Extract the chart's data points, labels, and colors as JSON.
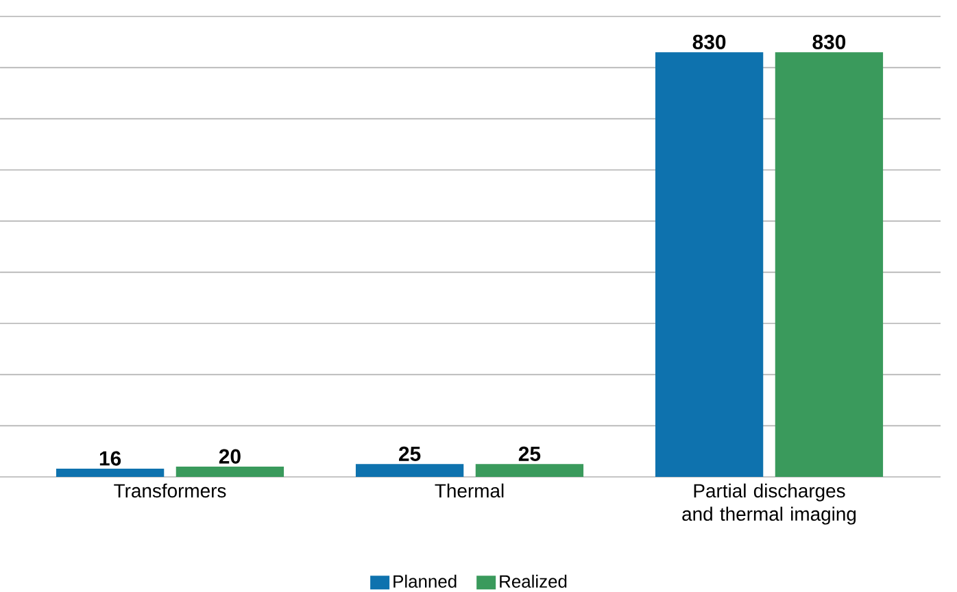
{
  "chart_data": {
    "type": "bar",
    "categories": [
      "Transformers",
      "Thermal",
      "Partial discharges and thermal imaging"
    ],
    "series": [
      {
        "name": "Planned",
        "color": "#0e72ae",
        "values": [
          16,
          25,
          830
        ]
      },
      {
        "name": "Realized",
        "color": "#3a9a5c",
        "values": [
          20,
          25,
          830
        ]
      }
    ],
    "ylim": [
      0,
      900
    ],
    "yticks": [
      {
        "value": 0,
        "label": null
      },
      {
        "value": 100,
        "label": null
      },
      {
        "value": 200,
        "label": null
      },
      {
        "value": 300,
        "label": null
      },
      {
        "value": 400,
        "label": null
      },
      {
        "value": 500,
        "label": null
      },
      {
        "value": 600,
        "label": null
      },
      {
        "value": 700,
        "label": null
      },
      {
        "value": 800,
        "label": null
      },
      {
        "value": 900,
        "label": null
      }
    ],
    "tick_labels": "x",
    "grid": "y",
    "legend": "bottom",
    "data_labels": true
  }
}
